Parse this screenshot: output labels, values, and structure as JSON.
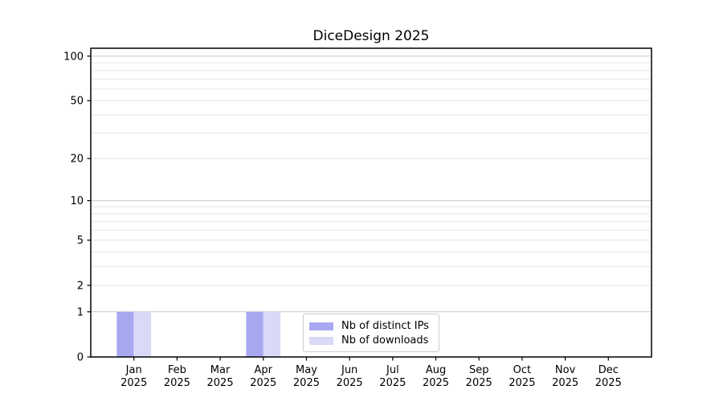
{
  "title": "DiceDesign 2025",
  "chart_data": {
    "type": "bar",
    "title": "DiceDesign 2025",
    "categories": [
      "Jan 2025",
      "Feb 2025",
      "Mar 2025",
      "Apr 2025",
      "May 2025",
      "Jun 2025",
      "Jul 2025",
      "Aug 2025",
      "Sep 2025",
      "Oct 2025",
      "Nov 2025",
      "Dec 2025"
    ],
    "series": [
      {
        "name": "Nb of distinct IPs",
        "color": "#a8a8f2",
        "values": [
          1,
          0,
          0,
          1,
          0,
          0,
          0,
          0,
          0,
          0,
          0,
          0
        ]
      },
      {
        "name": "Nb of downloads",
        "color": "#dadaf8",
        "values": [
          1,
          0,
          0,
          1,
          0,
          0,
          0,
          0,
          0,
          0,
          0,
          0
        ]
      }
    ],
    "xlabel": "",
    "ylabel": "",
    "yscale": "log1p",
    "y_ticks": [
      0,
      1,
      2,
      5,
      10,
      20,
      50,
      100
    ],
    "y_minor_ticks": [
      3,
      4,
      6,
      7,
      8,
      9,
      30,
      40,
      60,
      70,
      80,
      90
    ],
    "ylim": [
      0,
      113
    ],
    "grid": "horizontal",
    "legend_position": "lower center",
    "colors": {
      "background": "#ffffff",
      "spine": "#000000",
      "major_gridline": "#c9c9c9",
      "minor_gridline": "#e6e6e6",
      "tick_text": "#000000"
    }
  }
}
